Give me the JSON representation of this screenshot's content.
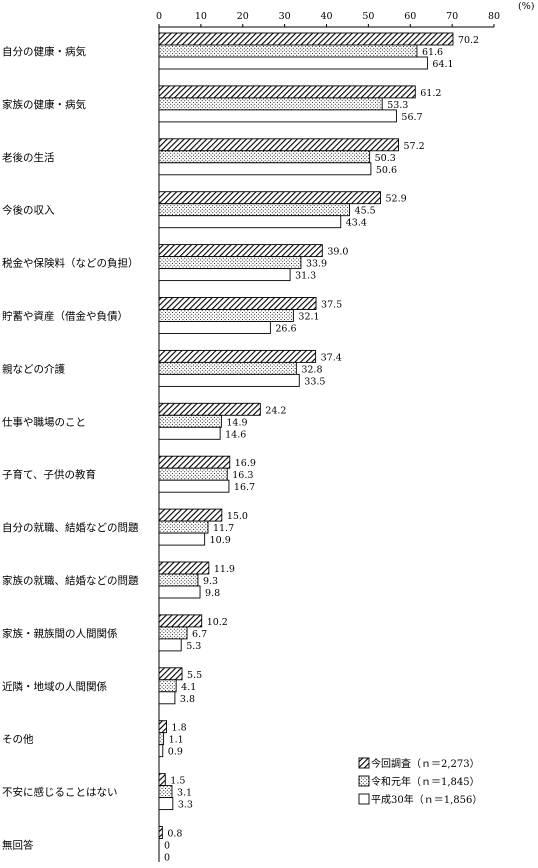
{
  "chart_data": {
    "type": "bar",
    "orientation": "horizontal",
    "unit": "(%)",
    "xlim": [
      0,
      80
    ],
    "x_ticks": [
      0,
      10,
      20,
      30,
      40,
      50,
      60,
      70,
      80
    ],
    "categories": [
      "自分の健康・病気",
      "家族の健康・病気",
      "老後の生活",
      "今後の収入",
      "税金や保険料（などの負担）",
      "貯蓄や資産（借金や負債）",
      "親などの介護",
      "仕事や職場のこと",
      "子育て、子供の教育",
      "自分の就職、結婚などの問題",
      "家族の就職、結婚などの問題",
      "家族・親族間の人間関係",
      "近隣・地域の人間関係",
      "その他",
      "不安に感じることはない",
      "無回答"
    ],
    "series": [
      {
        "name": "今回調査（ｎ＝2,273）",
        "pattern": "hatch",
        "values": [
          70.2,
          61.2,
          57.2,
          52.9,
          39.0,
          37.5,
          37.4,
          24.2,
          16.9,
          15.0,
          11.9,
          10.2,
          5.5,
          1.8,
          1.5,
          0.8
        ],
        "labels": [
          "70.2",
          "61.2",
          "57.2",
          "52.9",
          "39.0",
          "37.5",
          "37.4",
          "24.2",
          "16.9",
          "15.0",
          "11.9",
          "10.2",
          "5.5",
          "1.8",
          "1.5",
          "0.8"
        ]
      },
      {
        "name": "令和元年（ｎ＝1,845）",
        "pattern": "dots",
        "values": [
          61.6,
          53.3,
          50.3,
          45.5,
          33.9,
          32.1,
          32.8,
          14.9,
          16.3,
          11.7,
          9.3,
          6.7,
          4.1,
          1.1,
          3.1,
          0
        ],
        "labels": [
          "61.6",
          "53.3",
          "50.3",
          "45.5",
          "33.9",
          "32.1",
          "32.8",
          "14.9",
          "16.3",
          "11.7",
          "9.3",
          "6.7",
          "4.1",
          "1.1",
          "3.1",
          "0"
        ]
      },
      {
        "name": "平成30年（ｎ＝1,856）",
        "pattern": "white",
        "values": [
          64.1,
          56.7,
          50.6,
          43.4,
          31.3,
          26.6,
          33.5,
          14.6,
          16.7,
          10.9,
          9.8,
          5.3,
          3.8,
          0.9,
          3.3,
          0
        ],
        "labels": [
          "64.1",
          "56.7",
          "50.6",
          "43.4",
          "31.3",
          "26.6",
          "33.5",
          "14.6",
          "16.7",
          "10.9",
          "9.8",
          "5.3",
          "3.8",
          "0.9",
          "3.3",
          "0"
        ]
      }
    ],
    "legend_position": "bottom-right",
    "grid": false
  }
}
